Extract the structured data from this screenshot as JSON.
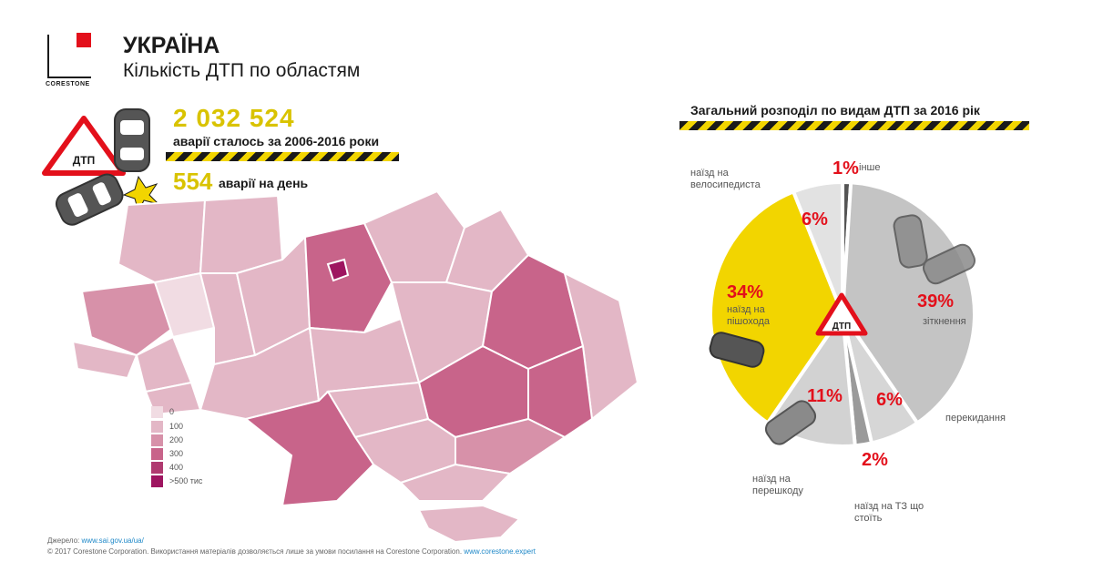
{
  "logo": {
    "text": "CORESTONE"
  },
  "header": {
    "title": "УКРАЇНА",
    "subtitle": "Кількість ДТП по областям"
  },
  "stats": {
    "total": "2 032 524",
    "total_label": "аварії сталось за 2006-2016 роки",
    "per_day": "554",
    "per_day_label": "аварії на день",
    "sign_text": "ДТП"
  },
  "legend": {
    "items": [
      {
        "label": "0",
        "color": "#f1dce3"
      },
      {
        "label": "100",
        "color": "#e3b7c6"
      },
      {
        "label": "200",
        "color": "#d791a9"
      },
      {
        "label": "300",
        "color": "#c8648a"
      },
      {
        "label": "400",
        "color": "#b03a70"
      },
      {
        "label": ">500 тис",
        "color": "#9e1560"
      }
    ]
  },
  "colors": {
    "accent_yellow": "#f2d500",
    "accent_red": "#e3101b",
    "pie_gray": "#c4c4c4",
    "pie_dark": "#555555"
  },
  "right": {
    "title": "Загальний розподіл по видам ДТП за 2016 рік",
    "sign_text": "ДТП"
  },
  "chart_data": {
    "type": "pie",
    "title": "Загальний розподіл по видам ДТП за 2016 рік",
    "categories": [
      "інше",
      "зіткнення",
      "перекидання",
      "наїзд на ТЗ що стоїть",
      "наїзд на перешкоду",
      "наїзд на пішохода",
      "наїзд на велосипедиста"
    ],
    "values": [
      1,
      39,
      6,
      2,
      11,
      34,
      6
    ],
    "labels": [
      "1%",
      "39%",
      "6%",
      "2%",
      "11%",
      "34%",
      "6%"
    ],
    "colors": [
      "#555555",
      "#c4c4c4",
      "#d6d6d6",
      "#9a9a9a",
      "#d2d2d2",
      "#f2d500",
      "#e2e2e2"
    ]
  },
  "footer": {
    "source_label": "Джерело:",
    "source_link": "www.sai.gov.ua/ua/",
    "copyright": "© 2017 Corestone Corporation. Використання матеріалів дозволяється лише за умови посилання на Corestone Corporation.",
    "copyright_link": "www.corestone.expert"
  }
}
